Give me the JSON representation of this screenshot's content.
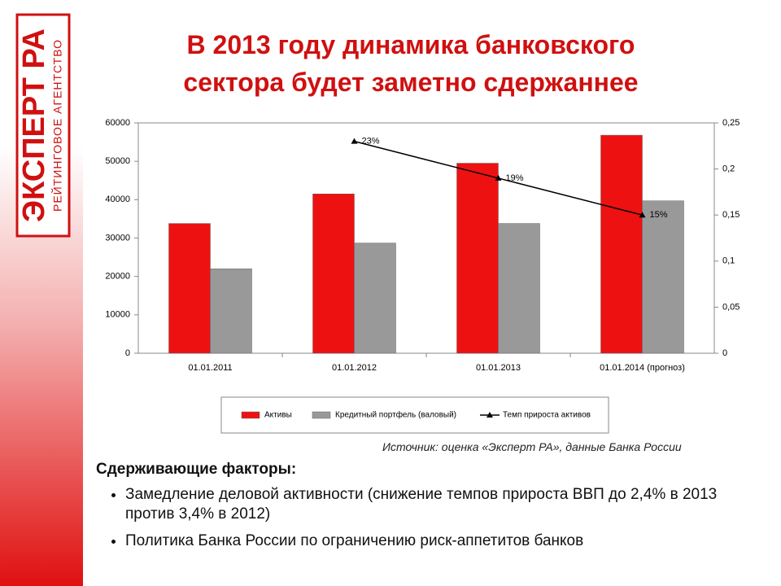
{
  "logo": {
    "name": "ЭКСПЕРТ РА",
    "subtitle": "РЕЙТИНГОВОЕ АГЕНТСТВО"
  },
  "title": [
    "В 2013 году динамика банковского",
    "сектора будет заметно сдержаннее"
  ],
  "chart_data": {
    "type": "bar",
    "categories": [
      "01.01.2011",
      "01.01.2012",
      "01.01.2013",
      "01.01.2014 (прогноз)"
    ],
    "series": [
      {
        "name": "Активы",
        "color": "#ee1111",
        "values": [
          33800,
          41500,
          49500,
          56800
        ]
      },
      {
        "name": "Кредитный портфель (валовый)",
        "color": "#999999",
        "values": [
          22000,
          28700,
          33800,
          39700
        ]
      },
      {
        "name": "Темп прироста активов",
        "type": "line",
        "axis": "y2",
        "color": "#000000",
        "values": [
          null,
          0.23,
          0.19,
          0.15
        ],
        "value_labels": [
          null,
          "23%",
          "19%",
          "15%"
        ]
      }
    ],
    "ylim": [
      0,
      60000
    ],
    "yticks": [
      0,
      10000,
      20000,
      30000,
      40000,
      50000,
      60000
    ],
    "y2lim": [
      0,
      0.25
    ],
    "y2ticks": [
      0,
      {
        "value": 0.05,
        "label": "0,05"
      },
      {
        "value": 0.1,
        "label": "0,1"
      },
      {
        "value": 0.15,
        "label": "0,15"
      },
      {
        "value": 0.2,
        "label": "0,2"
      },
      {
        "value": 0.25,
        "label": "0,25"
      }
    ],
    "legend": "bottom"
  },
  "source": "Источник: оценка «Эксперт РА», данные Банка России",
  "factors": {
    "heading": "Сдерживающие факторы:",
    "items": [
      "Замедление деловой активности (снижение темпов прироста ВВП до 2,4% в 2013 против 3,4% в 2012)",
      "Политика Банка России по ограничению риск-аппетитов банков"
    ]
  }
}
